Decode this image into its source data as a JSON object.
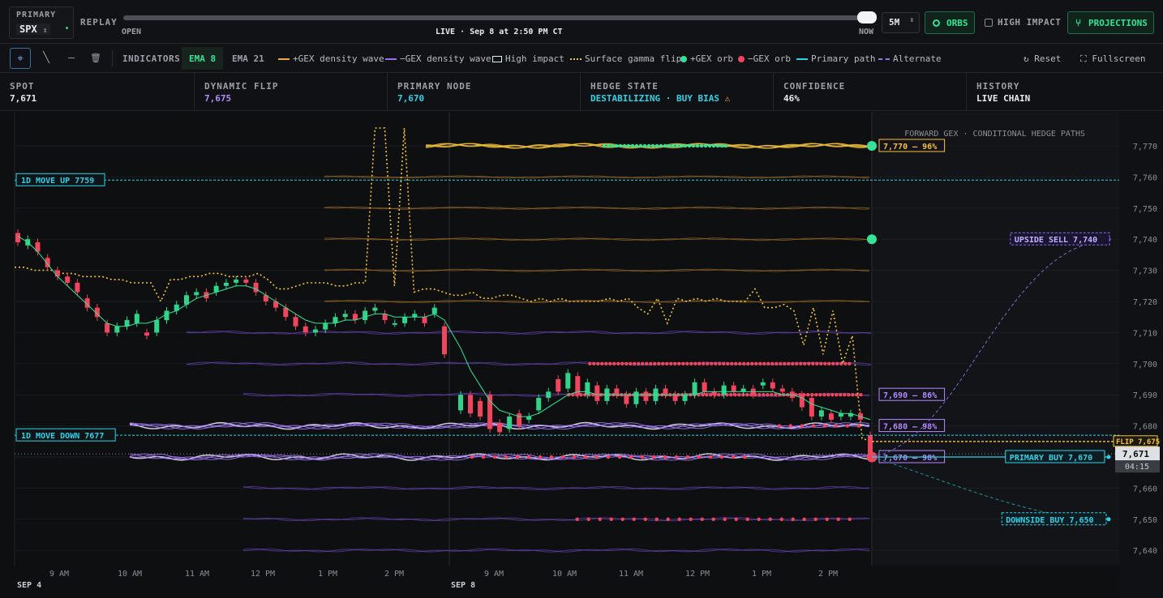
{
  "topbar": {
    "symbol_label": "PRIMARY",
    "symbol_value": "SPX",
    "symbol_chevron": "⌃",
    "replay_label": "REPLAY",
    "slider_open": "OPEN",
    "slider_live": "LIVE · Sep 8 at 2:50 PM CT",
    "slider_now": "NOW",
    "slider_progress": 1.0,
    "timeframe": "5M",
    "orbs_label": "ORBS",
    "high_impact_label": "HIGH IMPACT",
    "high_impact_checked": false,
    "projections_label": "PROJECTIONS"
  },
  "toolbar": {
    "tools": [
      {
        "name": "crosshair-icon",
        "glyph": "⌖"
      },
      {
        "name": "trendline-icon",
        "glyph": "╲"
      },
      {
        "name": "hline-icon",
        "glyph": "—"
      },
      {
        "name": "trash-icon",
        "glyph": "🗑"
      }
    ],
    "indicators_label": "INDICATORS",
    "ema8_label": "EMA 8",
    "ema21_label": "EMA 21",
    "legend": [
      {
        "label": "+GEX density wave",
        "kind": "line",
        "color": "#f2a83a"
      },
      {
        "label": "−GEX density wave",
        "kind": "line",
        "color": "#9b6cf5"
      },
      {
        "label": "High impact",
        "kind": "box",
        "color": "#d8f5e6"
      },
      {
        "label": "Surface gamma flip",
        "kind": "dash",
        "color": "#f4c23c"
      },
      {
        "label": "+GEX orb",
        "kind": "dot",
        "color": "#35e398"
      },
      {
        "label": "−GEX orb",
        "kind": "dot",
        "color": "#f0455d"
      },
      {
        "label": "Primary path",
        "kind": "line",
        "color": "#2ed3e8"
      },
      {
        "label": "Alternate",
        "kind": "dash",
        "color": "#8a7ae0"
      }
    ],
    "reset_label": "Reset",
    "reset_icon": "↻",
    "fullscreen_label": "Fullscreen",
    "fullscreen_icon": "⛶"
  },
  "stats": [
    {
      "label": "SPOT",
      "value": "7,671",
      "color": "#e8eaed"
    },
    {
      "label": "DYNAMIC FLIP",
      "value": "7,675",
      "color": "#b38bff"
    },
    {
      "label": "PRIMARY NODE",
      "value": "7,670",
      "color": "#2ed3e8"
    },
    {
      "label": "HEDGE STATE",
      "value": "DESTABILIZING · BUY BIAS",
      "color": "#2ed3e8",
      "warn_icon": "⚠"
    },
    {
      "label": "CONFIDENCE",
      "value": "46%",
      "color": "#e8eaed"
    },
    {
      "label": "HISTORY",
      "value": "LIVE CHAIN",
      "color": "#e8eaed"
    }
  ],
  "chart_data": {
    "type": "line",
    "title": "FORWARD GEX · CONDITIONAL HEDGE PATHS",
    "ylim": [
      7635,
      7777
    ],
    "y_ticks": [
      "7,770",
      "7,760",
      "7,750",
      "7,740",
      "7,730",
      "7,720",
      "7,710",
      "7,700",
      "7,690",
      "7,680",
      "7,670",
      "7,660",
      "7,650",
      "7,640"
    ],
    "y_tick_values": [
      7770,
      7760,
      7750,
      7740,
      7730,
      7720,
      7710,
      7700,
      7690,
      7680,
      7670,
      7660,
      7650,
      7640
    ],
    "x_ticks": [
      "9 AM",
      "10 AM",
      "11 AM",
      "12 PM",
      "1 PM",
      "2 PM",
      "9 AM",
      "10 AM",
      "11 AM",
      "12 PM",
      "1 PM",
      "2 PM"
    ],
    "day_labels": [
      "SEP 4",
      "SEP 8"
    ],
    "candles": [
      {
        "o": 7742,
        "c": 7739
      },
      {
        "o": 7738,
        "c": 7740
      },
      {
        "o": 7739,
        "c": 7736
      },
      {
        "o": 7734,
        "c": 7731
      },
      {
        "o": 7730,
        "c": 7728
      },
      {
        "o": 7728,
        "c": 7726
      },
      {
        "o": 7726,
        "c": 7723
      },
      {
        "o": 7721,
        "c": 7718
      },
      {
        "o": 7718,
        "c": 7715
      },
      {
        "o": 7713,
        "c": 7710
      },
      {
        "o": 7710,
        "c": 7712
      },
      {
        "o": 7712,
        "c": 7714
      },
      {
        "o": 7713,
        "c": 7716
      },
      {
        "o": 7710,
        "c": 7709
      },
      {
        "o": 7710,
        "c": 7714
      },
      {
        "o": 7714,
        "c": 7717
      },
      {
        "o": 7717,
        "c": 7719
      },
      {
        "o": 7719,
        "c": 7722
      },
      {
        "o": 7722,
        "c": 7723
      },
      {
        "o": 7723,
        "c": 7721
      },
      {
        "o": 7723,
        "c": 7725
      },
      {
        "o": 7725,
        "c": 7726
      },
      {
        "o": 7726,
        "c": 7727
      },
      {
        "o": 7727,
        "c": 7726
      },
      {
        "o": 7726,
        "c": 7723
      },
      {
        "o": 7722,
        "c": 7720
      },
      {
        "o": 7720,
        "c": 7718
      },
      {
        "o": 7718,
        "c": 7715
      },
      {
        "o": 7715,
        "c": 7712
      },
      {
        "o": 7712,
        "c": 7710
      },
      {
        "o": 7710,
        "c": 7711
      },
      {
        "o": 7711,
        "c": 7713
      },
      {
        "o": 7713,
        "c": 7715
      },
      {
        "o": 7715,
        "c": 7716
      },
      {
        "o": 7716,
        "c": 7714
      },
      {
        "o": 7714,
        "c": 7717
      },
      {
        "o": 7717,
        "c": 7718
      },
      {
        "o": 7716,
        "c": 7714
      },
      {
        "o": 7713,
        "c": 7713
      },
      {
        "o": 7713,
        "c": 7715
      },
      {
        "o": 7715,
        "c": 7716
      },
      {
        "o": 7715,
        "c": 7713
      },
      {
        "o": 7716,
        "c": 7718
      },
      {
        "o": 7712,
        "c": 7703
      },
      {
        "o": 7685,
        "c": 7690
      },
      {
        "o": 7690,
        "c": 7684
      },
      {
        "o": 7688,
        "c": 7683
      },
      {
        "o": 7690,
        "c": 7679
      },
      {
        "o": 7681,
        "c": 7678
      },
      {
        "o": 7679,
        "c": 7683
      },
      {
        "o": 7684,
        "c": 7680
      },
      {
        "o": 7682,
        "c": 7683
      },
      {
        "o": 7685,
        "c": 7689
      },
      {
        "o": 7689,
        "c": 7691
      },
      {
        "o": 7695,
        "c": 7691
      },
      {
        "o": 7692,
        "c": 7697
      },
      {
        "o": 7696,
        "c": 7690
      },
      {
        "o": 7690,
        "c": 7694
      },
      {
        "o": 7693,
        "c": 7688
      },
      {
        "o": 7688,
        "c": 7692
      },
      {
        "o": 7692,
        "c": 7690
      },
      {
        "o": 7690,
        "c": 7687
      },
      {
        "o": 7687,
        "c": 7691
      },
      {
        "o": 7691,
        "c": 7688
      },
      {
        "o": 7688,
        "c": 7692
      },
      {
        "o": 7692,
        "c": 7690
      },
      {
        "o": 7690,
        "c": 7688
      },
      {
        "o": 7688,
        "c": 7690
      },
      {
        "o": 7690,
        "c": 7694
      },
      {
        "o": 7694,
        "c": 7691
      },
      {
        "o": 7691,
        "c": 7690
      },
      {
        "o": 7690,
        "c": 7693
      },
      {
        "o": 7693,
        "c": 7691
      },
      {
        "o": 7691,
        "c": 7692
      },
      {
        "o": 7692,
        "c": 7690
      },
      {
        "o": 7693,
        "c": 7694
      },
      {
        "o": 7694,
        "c": 7692
      },
      {
        "o": 7692,
        "c": 7691
      },
      {
        "o": 7691,
        "c": 7689
      },
      {
        "o": 7690,
        "c": 7686
      },
      {
        "o": 7689,
        "c": 7683
      },
      {
        "o": 7683,
        "c": 7685
      },
      {
        "o": 7684,
        "c": 7682
      },
      {
        "o": 7683,
        "c": 7684
      },
      {
        "o": 7683,
        "c": 7684
      },
      {
        "o": 7684,
        "c": 7682
      },
      {
        "o": 7677,
        "c": 7670
      }
    ],
    "ema8": [
      7741,
      7739,
      7736,
      7732,
      7728,
      7725,
      7722,
      7719,
      7716,
      7713,
      7712,
      7712,
      7713,
      7713,
      7714,
      7716,
      7717,
      7719,
      7721,
      7722,
      7723,
      7724,
      7725,
      7725,
      7724,
      7722,
      7720,
      7718,
      7716,
      7714,
      7713,
      7713,
      7713,
      7714,
      7714,
      7715,
      7716,
      7716,
      7715,
      7715,
      7715,
      7715,
      7716,
      7714,
      7705,
      7698,
      7693,
      7688,
      7685,
      7684,
      7683,
      7683,
      7684,
      7686,
      7688,
      7690,
      7691,
      7691,
      7690,
      7690,
      7690,
      7690,
      7690,
      7690,
      7690,
      7690,
      7690,
      7690,
      7690,
      7691,
      7691,
      7691,
      7691,
      7691,
      7691,
      7691,
      7691,
      7690,
      7690,
      7689,
      7687,
      7686,
      7685,
      7684,
      7684,
      7683,
      7682
    ],
    "gamma_flip": [
      7731,
      7731,
      7730,
      7730,
      7730,
      7729,
      7729,
      7728,
      7728,
      7728,
      7727,
      7727,
      7726,
      7726,
      7726,
      7720,
      7727,
      7727,
      7728,
      7728,
      7729,
      7729,
      7728,
      7728,
      7728,
      7729,
      7727,
      7724,
      7724,
      7725,
      7726,
      7726,
      7726,
      7725,
      7725,
      7726,
      7726,
      7778,
      7777,
      7725,
      7777,
      7723,
      7724,
      7724,
      7723,
      7722,
      7722,
      7723,
      7721,
      7721,
      7722,
      7722,
      7721,
      7720,
      7721,
      7720,
      7721,
      7720,
      7720,
      7720,
      7720,
      7721,
      7720,
      7721,
      7718,
      7716,
      7721,
      7713,
      7721,
      7720,
      7721,
      7720,
      7721,
      7720,
      7720,
      7720,
      7724,
      7718,
      7718,
      7719,
      7717,
      7706,
      7718,
      7703,
      7717,
      7700,
      7709,
      7676,
      7675
    ],
    "pos_gex_levels": [
      7770,
      7760,
      7750,
      7740,
      7730,
      7720
    ],
    "neg_gex_levels": [
      7710,
      7700,
      7690,
      7680,
      7670,
      7660,
      7650,
      7640
    ],
    "level_labels": [
      {
        "text": "7,770 – 96%",
        "value": 7770,
        "color": "#f4c23c"
      },
      {
        "text": "7,690 – 86%",
        "value": 7690,
        "color": "#b38bff"
      },
      {
        "text": "7,680 – 98%",
        "value": 7680,
        "color": "#b38bff"
      },
      {
        "text": "7,670 – 98%",
        "value": 7670,
        "color": "#b38bff"
      }
    ],
    "moves": [
      {
        "text": "1D MOVE UP 7759",
        "value": 7759
      },
      {
        "text": "1D MOVE DOWN 7677",
        "value": 7677
      }
    ],
    "spot": {
      "price": "7,671",
      "countdown": "04:15",
      "value": 7671
    },
    "flip": {
      "text": "FLIP 7,675",
      "value": 7675
    },
    "targets": [
      {
        "text": "UPSIDE SELL 7,740",
        "value": 7740,
        "kind": "alternate"
      },
      {
        "text": "PRIMARY BUY 7,670",
        "value": 7670,
        "kind": "primary"
      },
      {
        "text": "DOWNSIDE BUY 7,650",
        "value": 7650,
        "kind": "alternate-down"
      }
    ],
    "orbs_pos": [
      {
        "level": 7770,
        "count": 31
      }
    ],
    "orbs_neg": [
      {
        "level": 7700,
        "from": 0.33,
        "to": 0.95
      },
      {
        "level": 7690,
        "from": 0.28,
        "to": 0.98
      },
      {
        "level": 7680,
        "from": 0.78,
        "to": 0.98
      },
      {
        "level": 7670,
        "from": 0.05,
        "to": 0.7
      },
      {
        "level": 7650,
        "from": 0.3,
        "to": 0.95
      }
    ]
  }
}
